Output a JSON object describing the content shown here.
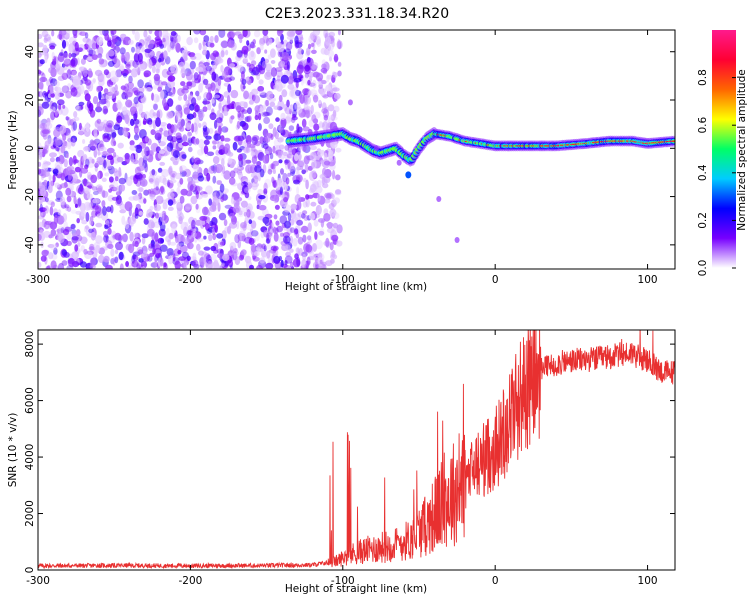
{
  "title": "C2E3.2023.331.18.34.R20",
  "chart_data": [
    {
      "type": "heatmap",
      "name": "spectrogram",
      "xlabel": "Height of straight line (km)",
      "ylabel": "Frequency (Hz)",
      "xlim": [
        -300,
        118
      ],
      "ylim": [
        -50,
        49
      ],
      "xticks": [
        -300,
        -200,
        -100,
        0,
        100
      ],
      "yticks": [
        -40,
        -20,
        0,
        20,
        40
      ],
      "noise_region": [
        -300,
        -110
      ],
      "signal_ridge": {
        "x": [
          -135,
          -120,
          -110,
          -100,
          -95,
          -90,
          -85,
          -80,
          -75,
          -70,
          -65,
          -60,
          -55,
          -50,
          -45,
          -40,
          -30,
          -20,
          -10,
          0,
          10,
          20,
          40,
          60,
          75,
          90,
          100,
          118
        ],
        "freq": [
          3,
          4,
          5,
          6,
          4,
          3,
          1,
          -1,
          -2,
          -1,
          0,
          -3,
          -5,
          0,
          4,
          6,
          5,
          3,
          2,
          1,
          1,
          1,
          1,
          2,
          3,
          3,
          2,
          3
        ]
      },
      "colorbar": {
        "label": "Normalized spectral amplitude",
        "range": [
          0,
          1
        ],
        "ticks": [
          0.0,
          0.2,
          0.4,
          0.6,
          0.8
        ],
        "tick_labels": [
          "0.0",
          "0.2",
          "0.4",
          "0.6",
          "0.8"
        ],
        "colormap": [
          "#ffffff",
          "#7700ff",
          "#0000ff",
          "#00ccff",
          "#00ff66",
          "#ffff00",
          "#ff6600",
          "#ff0033",
          "#ff1a8c"
        ]
      }
    },
    {
      "type": "line",
      "name": "snr",
      "xlabel": "Height of straight line (km)",
      "ylabel": "SNR (10 * v/v)",
      "xlim": [
        -300,
        118
      ],
      "ylim": [
        0,
        8500
      ],
      "xticks": [
        -300,
        -200,
        -100,
        0,
        100
      ],
      "yticks": [
        0,
        2000,
        4000,
        6000,
        8000
      ],
      "color": "#e83030",
      "series": [
        {
          "name": "SNR",
          "x": [
            -300,
            -250,
            -200,
            -150,
            -120,
            -105,
            -95,
            -85,
            -75,
            -65,
            -55,
            -45,
            -38,
            -30,
            -22,
            -15,
            -8,
            0,
            5,
            10,
            15,
            20,
            25,
            30,
            40,
            50,
            60,
            70,
            80,
            90,
            95,
            100,
            105,
            110,
            118
          ],
          "y": [
            150,
            160,
            150,
            160,
            180,
            300,
            550,
            700,
            800,
            900,
            1100,
            1600,
            2100,
            2600,
            3000,
            3500,
            3900,
            4300,
            4800,
            5500,
            6000,
            6400,
            6800,
            7100,
            7300,
            7400,
            7450,
            7500,
            7600,
            7700,
            7500,
            7400,
            7200,
            7000,
            7000
          ]
        }
      ]
    }
  ]
}
